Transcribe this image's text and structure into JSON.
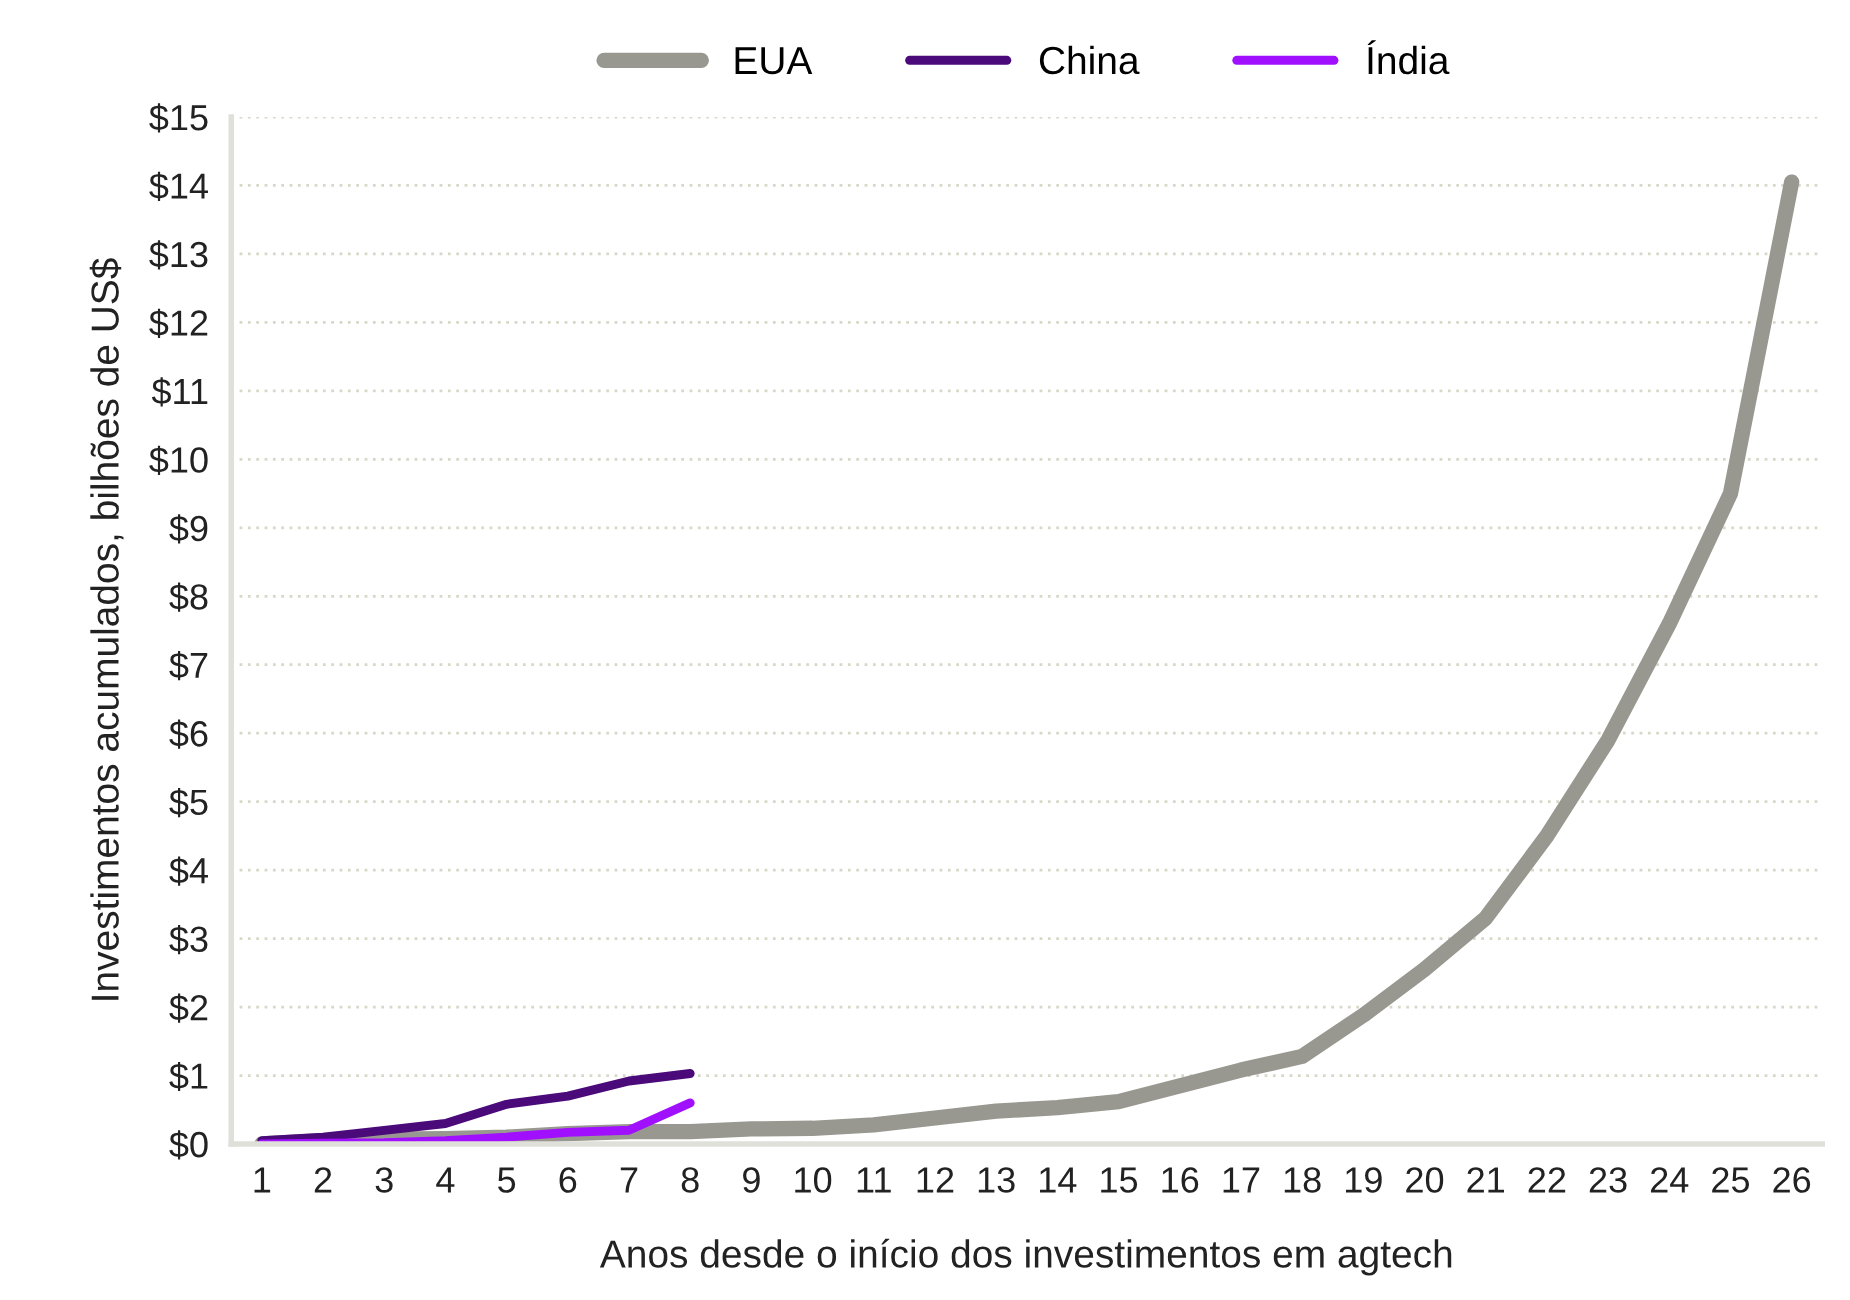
{
  "chart_data": {
    "type": "line",
    "xlabel": "Anos desde o início dos investimentos em agtech",
    "ylabel": "Investimentos acumulados, bilhões de US$",
    "x": [
      1,
      2,
      3,
      4,
      5,
      6,
      7,
      8,
      9,
      10,
      11,
      12,
      13,
      14,
      15,
      16,
      17,
      18,
      19,
      20,
      21,
      22,
      23,
      24,
      25,
      26
    ],
    "xlim": [
      0.5,
      26.5
    ],
    "xticks": [
      1,
      2,
      3,
      4,
      5,
      6,
      7,
      8,
      9,
      10,
      11,
      12,
      13,
      14,
      15,
      16,
      17,
      18,
      19,
      20,
      21,
      22,
      23,
      24,
      25,
      26
    ],
    "ylim": [
      0,
      15
    ],
    "yticks": [
      {
        "value": 0,
        "label": "$0"
      },
      {
        "value": 1,
        "label": "$1"
      },
      {
        "value": 2,
        "label": "$2"
      },
      {
        "value": 3,
        "label": "$3"
      },
      {
        "value": 4,
        "label": "$4"
      },
      {
        "value": 5,
        "label": "$5"
      },
      {
        "value": 6,
        "label": "$6"
      },
      {
        "value": 7,
        "label": "$7"
      },
      {
        "value": 8,
        "label": "$8"
      },
      {
        "value": 9,
        "label": "$9"
      },
      {
        "value": 10,
        "label": "$10"
      },
      {
        "value": 11,
        "label": "$11"
      },
      {
        "value": 12,
        "label": "$12"
      },
      {
        "value": 13,
        "label": "$13"
      },
      {
        "value": 14,
        "label": "$14"
      },
      {
        "value": 15,
        "label": "$15"
      }
    ],
    "grid": "y",
    "legend": "top",
    "marker": "none",
    "line_style": "solid",
    "series": [
      {
        "name": "EUA",
        "color": "#989890",
        "values": [
          0.0,
          0.05,
          0.07,
          0.08,
          0.1,
          0.15,
          0.18,
          0.18,
          0.22,
          0.23,
          0.28,
          0.38,
          0.48,
          0.53,
          0.62,
          0.85,
          1.08,
          1.28,
          1.88,
          2.55,
          3.3,
          4.5,
          5.9,
          7.6,
          9.5,
          14.05
        ]
      },
      {
        "name": "China",
        "color": "#4b0a7a",
        "values": [
          0.05,
          0.1,
          0.2,
          0.3,
          0.58,
          0.7,
          0.92,
          1.03,
          null,
          null,
          null,
          null,
          null,
          null,
          null,
          null,
          null,
          null,
          null,
          null,
          null,
          null,
          null,
          null,
          null,
          null
        ]
      },
      {
        "name": "Índia",
        "color": "#a010ff",
        "values": [
          0.0,
          0.01,
          0.02,
          0.05,
          0.1,
          0.17,
          0.2,
          0.6,
          null,
          null,
          null,
          null,
          null,
          null,
          null,
          null,
          null,
          null,
          null,
          null,
          null,
          null,
          null,
          null,
          null,
          null
        ]
      }
    ]
  }
}
